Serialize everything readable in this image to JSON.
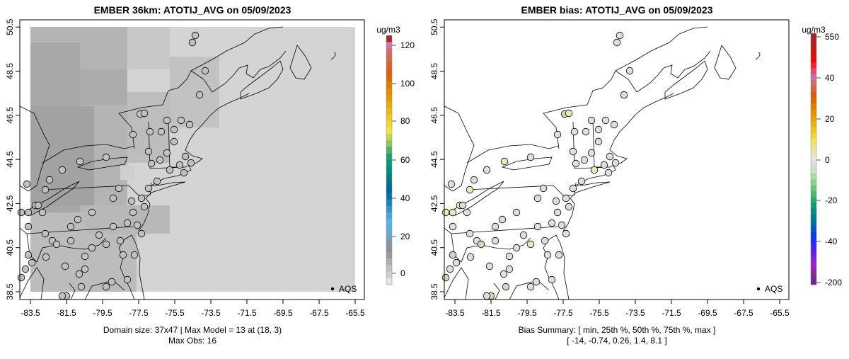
{
  "chart_data": [
    {
      "type": "heatmap",
      "title": "EMBER 36km: ATOTIJ_AVG on 05/09/2023",
      "xlabel": "",
      "ylabel": "",
      "xlim": [
        -84.1,
        -65.0
      ],
      "ylim": [
        38.2,
        50.8
      ],
      "x_ticks": [
        "-83.5",
        "-81.5",
        "-79.5",
        "-77.5",
        "-75.5",
        "-73.5",
        "-71.5",
        "-69.5",
        "-67.5",
        "-65.5"
      ],
      "y_ticks": [
        "38.5",
        "40.5",
        "42.5",
        "44.5",
        "46.5",
        "48.5",
        "50.5"
      ],
      "colorbar": {
        "label": "ug/m3",
        "ticks": [
          "120",
          "100",
          "80",
          "60",
          "40",
          "20",
          "0"
        ],
        "range": [
          -8,
          125
        ]
      },
      "legend": {
        "label": "AQS",
        "position": "bottom-right"
      },
      "footer": [
        "Domain size: 37x47 | Max Model = 13 at (18, 3)",
        "Max Obs: 16"
      ]
    },
    {
      "type": "scatter",
      "title": "EMBER bias: ATOTIJ_AVG on 05/09/2023",
      "xlabel": "",
      "ylabel": "",
      "xlim": [
        -84.1,
        -65.0
      ],
      "ylim": [
        38.2,
        50.8
      ],
      "x_ticks": [
        "-83.5",
        "-81.5",
        "-79.5",
        "-77.5",
        "-75.5",
        "-73.5",
        "-71.5",
        "-69.5",
        "-67.5",
        "-65.5"
      ],
      "y_ticks": [
        "38.5",
        "40.5",
        "42.5",
        "44.5",
        "46.5",
        "48.5",
        "50.5"
      ],
      "colorbar": {
        "label": "ug/m3",
        "ticks": [
          "550",
          "40",
          "20",
          "0",
          "-20",
          "-40",
          "-200"
        ]
      },
      "legend": {
        "label": "AQS",
        "position": "bottom-right"
      },
      "footer": [
        "Bias Summary: [ min, 25th %, 50th %, 75th %, max ]",
        "[ -14,   -0.74,   0.26,   1.4,   8.1 ]"
      ],
      "bias_summary": {
        "min": -14,
        "p25": -0.74,
        "p50": 0.26,
        "p75": 1.4,
        "max": 8.1
      }
    }
  ]
}
